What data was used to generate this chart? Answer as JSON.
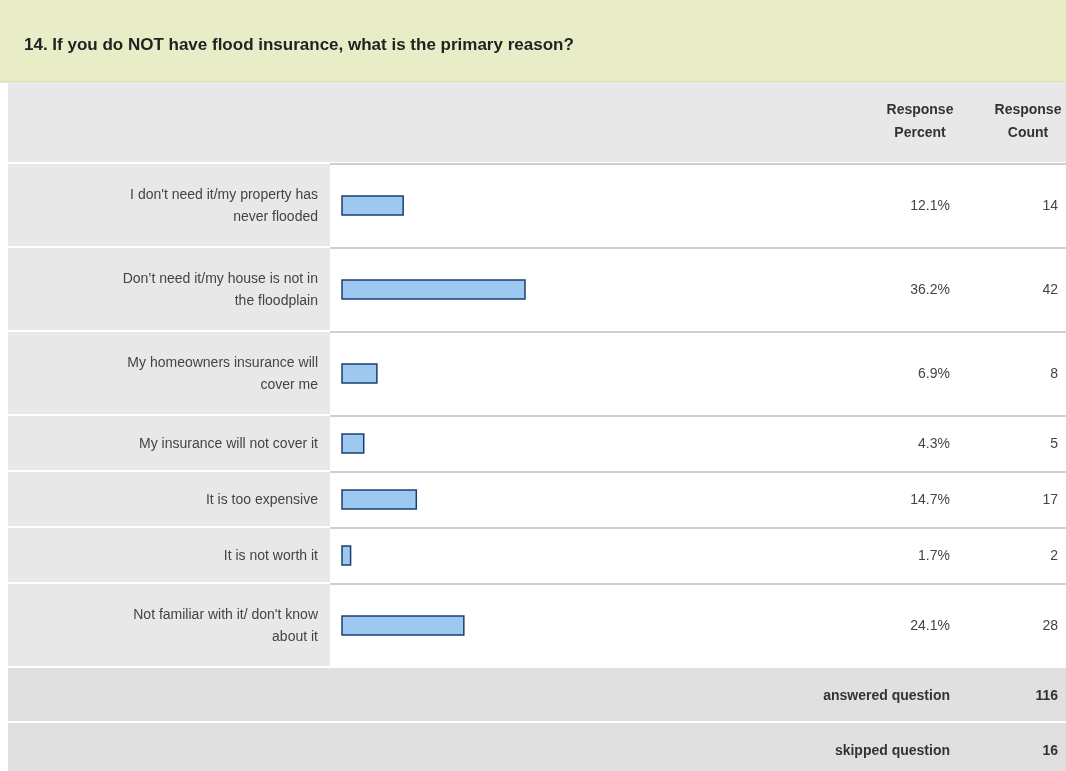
{
  "chart_data": {
    "type": "bar",
    "orientation": "horizontal",
    "title": "14. If you do NOT have flood insurance, what is the primary reason?",
    "categories": [
      "I don't need it/my property has never flooded",
      "Don’t need it/my house is not in the floodplain",
      "My homeowners insurance will cover me",
      "My insurance will not cover it",
      "It is too expensive",
      "It is not worth it",
      "Not familiar with it/ don't know about it"
    ],
    "values": [
      12.1,
      36.2,
      6.9,
      4.3,
      14.7,
      1.7,
      24.1
    ],
    "value_labels": [
      "12.1%",
      "36.2%",
      "6.9%",
      "4.3%",
      "14.7%",
      "1.7%",
      "24.1%"
    ],
    "color": "#9dc8f0",
    "annotations": [
      "Response Percent",
      "Response Count",
      "14",
      "42",
      "8",
      "5",
      "17",
      "2",
      "28",
      "answered question",
      "116",
      "skipped question",
      "16"
    ]
  }
}
